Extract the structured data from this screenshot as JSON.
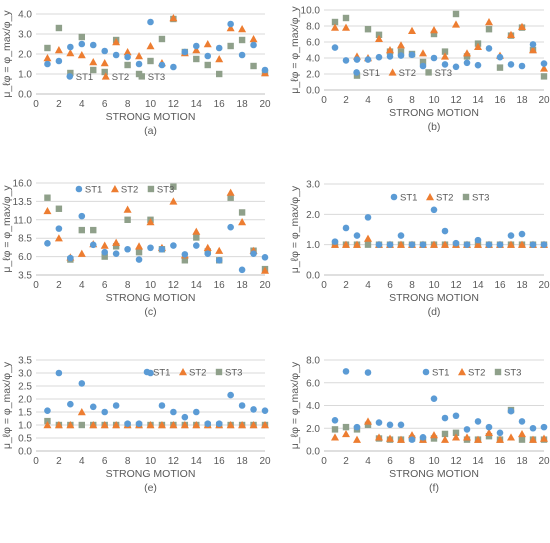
{
  "colors": {
    "ST1": "#5b9bd5",
    "ST2": "#ed7d31",
    "ST3": "#8fa08a"
  },
  "chart_data": [
    {
      "type": "scatter",
      "panel_label": "(a)",
      "xlabel": "STRONG MOTION",
      "ylabel": "μ_ℓφ = φ_max/φ_y",
      "xlim": [
        0,
        20
      ],
      "ylim": [
        0,
        4.0
      ],
      "yticks": [
        "0.0",
        "1.0",
        "2.0",
        "3.0",
        "4.0"
      ],
      "xticks": [
        "0",
        "2",
        "4",
        "6",
        "8",
        "10",
        "12",
        "14",
        "16",
        "18",
        "20"
      ],
      "legend": "bottom-left",
      "grid": "horizontal",
      "x": [
        1,
        2,
        3,
        4,
        5,
        6,
        7,
        8,
        9,
        10,
        11,
        12,
        13,
        14,
        15,
        16,
        17,
        18,
        19,
        20
      ],
      "series": [
        {
          "name": "ST1",
          "marker": "circle",
          "values": [
            1.5,
            1.65,
            2.35,
            2.5,
            2.45,
            2.15,
            1.95,
            1.85,
            1.5,
            3.6,
            1.45,
            1.35,
            2.1,
            2.4,
            1.9,
            2.3,
            3.5,
            1.95,
            2.45,
            1.2
          ]
        },
        {
          "name": "ST2",
          "marker": "triangle",
          "values": [
            1.8,
            2.2,
            2.05,
            1.95,
            1.6,
            1.55,
            2.6,
            2.1,
            1.9,
            2.4,
            1.55,
            3.8,
            2.05,
            2.2,
            2.5,
            1.75,
            3.3,
            3.25,
            2.75,
            1.05
          ]
        },
        {
          "name": "ST3",
          "marker": "square",
          "values": [
            2.3,
            3.3,
            1.05,
            2.85,
            1.2,
            1.1,
            2.7,
            1.45,
            1.0,
            1.65,
            2.75,
            3.75,
            2.1,
            1.75,
            1.45,
            1.0,
            2.4,
            2.7,
            1.4,
            1.05
          ]
        }
      ]
    },
    {
      "type": "scatter",
      "panel_label": "(b)",
      "xlabel": "STRONG MOTION",
      "ylabel": "μ_ℓφ = φ_max/φ_y",
      "xlim": [
        0,
        20
      ],
      "ylim": [
        0,
        10.0
      ],
      "yticks": [
        "0.0",
        "2.0",
        "4.0",
        "6.0",
        "8.0",
        "10.0"
      ],
      "xticks": [
        "0",
        "2",
        "4",
        "6",
        "8",
        "10",
        "12",
        "14",
        "16",
        "18",
        "20"
      ],
      "legend": "bottom-left",
      "grid": "horizontal",
      "x": [
        1,
        2,
        3,
        4,
        5,
        6,
        7,
        8,
        9,
        10,
        11,
        12,
        13,
        14,
        15,
        16,
        17,
        18,
        19,
        20
      ],
      "series": [
        {
          "name": "ST1",
          "marker": "circle",
          "values": [
            5.3,
            3.7,
            3.8,
            3.8,
            4.1,
            4.2,
            4.3,
            4.4,
            3.0,
            4.0,
            3.2,
            2.9,
            3.4,
            3.1,
            5.2,
            4.1,
            3.2,
            3.0,
            5.7,
            3.3
          ]
        },
        {
          "name": "ST2",
          "marker": "triangle",
          "values": [
            7.8,
            7.8,
            4.2,
            4.0,
            6.4,
            5.0,
            5.6,
            7.4,
            4.6,
            7.5,
            4.2,
            8.2,
            4.6,
            5.4,
            8.5,
            4.3,
            6.9,
            7.9,
            5.0,
            2.7
          ]
        },
        {
          "name": "ST3",
          "marker": "square",
          "values": [
            8.5,
            9.0,
            1.8,
            7.6,
            6.9,
            4.8,
            4.8,
            4.5,
            3.5,
            7.0,
            4.8,
            9.5,
            4.2,
            5.8,
            7.6,
            2.8,
            6.8,
            7.8,
            5.0,
            1.7
          ]
        }
      ]
    },
    {
      "type": "scatter",
      "panel_label": "(c)",
      "xlabel": "STRONG MOTION",
      "ylabel": "μ_ℓφ = φ_max/φ_y",
      "xlim": [
        0,
        20
      ],
      "ylim": [
        3.5,
        16.0
      ],
      "yticks": [
        "3.5",
        "6.0",
        "8.5",
        "11.0",
        "13.5",
        "16.0"
      ],
      "xticks": [
        "0",
        "2",
        "4",
        "6",
        "8",
        "10",
        "12",
        "14",
        "16",
        "18",
        "20"
      ],
      "legend": "top-left",
      "grid": "horizontal",
      "x": [
        1,
        2,
        3,
        4,
        5,
        6,
        7,
        8,
        9,
        10,
        11,
        12,
        13,
        14,
        15,
        16,
        17,
        18,
        19,
        20
      ],
      "series": [
        {
          "name": "ST1",
          "marker": "circle",
          "values": [
            7.8,
            9.8,
            5.8,
            11.5,
            7.6,
            6.6,
            6.4,
            7.0,
            5.6,
            7.2,
            7.0,
            7.5,
            6.3,
            7.5,
            6.4,
            5.5,
            10.0,
            4.2,
            6.4,
            5.9
          ]
        },
        {
          "name": "ST2",
          "marker": "triangle",
          "values": [
            12.2,
            8.5,
            5.9,
            6.4,
            7.7,
            7.5,
            7.9,
            12.4,
            7.4,
            10.7,
            7.2,
            13.5,
            6.2,
            9.4,
            7.2,
            6.8,
            14.7,
            10.7,
            6.8,
            4.1
          ]
        },
        {
          "name": "ST3",
          "marker": "square",
          "values": [
            14.0,
            12.5,
            5.6,
            9.6,
            9.6,
            6.0,
            7.4,
            11.0,
            6.6,
            11.0,
            7.0,
            15.5,
            5.5,
            8.6,
            6.7,
            5.5,
            14.0,
            12.0,
            6.8,
            4.3
          ]
        }
      ]
    },
    {
      "type": "scatter",
      "panel_label": "(d)",
      "xlabel": "STRONG MOTION",
      "ylabel": "μ_ℓφ = φ_max/φ_y",
      "xlim": [
        0,
        20
      ],
      "ylim": [
        0,
        3.0
      ],
      "yticks": [
        "0.0",
        "1.0",
        "2.0",
        "3.0"
      ],
      "xticks": [
        "0",
        "2",
        "4",
        "6",
        "8",
        "10",
        "12",
        "14",
        "16",
        "18",
        "20"
      ],
      "legend": "top-center",
      "grid": "horizontal",
      "x": [
        1,
        2,
        3,
        4,
        5,
        6,
        7,
        8,
        9,
        10,
        11,
        12,
        13,
        14,
        15,
        16,
        17,
        18,
        19,
        20
      ],
      "series": [
        {
          "name": "ST1",
          "marker": "circle",
          "values": [
            1.1,
            1.55,
            1.3,
            1.9,
            1.0,
            1.0,
            1.3,
            1.0,
            1.0,
            2.15,
            1.45,
            1.05,
            1.0,
            1.15,
            1.0,
            1.0,
            1.3,
            1.35,
            1.0,
            1.0
          ]
        },
        {
          "name": "ST2",
          "marker": "triangle",
          "values": [
            1.0,
            1.0,
            1.0,
            1.2,
            1.0,
            1.0,
            1.0,
            1.0,
            1.0,
            1.0,
            1.0,
            1.0,
            1.0,
            1.0,
            1.0,
            1.0,
            1.0,
            1.0,
            1.0,
            1.0
          ]
        },
        {
          "name": "ST3",
          "marker": "square",
          "values": [
            1.0,
            1.0,
            1.0,
            1.0,
            1.0,
            1.0,
            1.0,
            1.0,
            1.0,
            1.0,
            1.0,
            1.0,
            1.0,
            1.0,
            1.0,
            1.0,
            1.0,
            1.0,
            1.0,
            1.0
          ]
        }
      ]
    },
    {
      "type": "scatter",
      "panel_label": "(e)",
      "xlabel": "STRONG MOTION",
      "ylabel": "μ_ℓφ = φ_max/φ_y",
      "xlim": [
        0,
        20
      ],
      "ylim": [
        0,
        3.5
      ],
      "yticks": [
        "0.0",
        "0.5",
        "1.0",
        "1.5",
        "2.0",
        "2.5",
        "3.0",
        "3.5"
      ],
      "xticks": [
        "0",
        "2",
        "4",
        "6",
        "8",
        "10",
        "12",
        "14",
        "16",
        "18",
        "20"
      ],
      "legend": "top-right",
      "grid": "horizontal",
      "x": [
        1,
        2,
        3,
        4,
        5,
        6,
        7,
        8,
        9,
        10,
        11,
        12,
        13,
        14,
        15,
        16,
        17,
        18,
        19,
        20
      ],
      "series": [
        {
          "name": "ST1",
          "marker": "circle",
          "values": [
            1.55,
            3.0,
            1.8,
            2.6,
            1.7,
            1.5,
            1.75,
            1.05,
            1.05,
            3.0,
            1.75,
            1.5,
            1.3,
            1.5,
            1.05,
            1.05,
            2.15,
            1.75,
            1.6,
            1.55
          ]
        },
        {
          "name": "ST2",
          "marker": "triangle",
          "values": [
            1.0,
            1.0,
            1.0,
            1.5,
            1.0,
            1.0,
            1.0,
            1.0,
            1.0,
            1.0,
            1.0,
            1.0,
            1.0,
            1.0,
            1.0,
            1.0,
            1.0,
            1.0,
            1.0,
            1.0
          ]
        },
        {
          "name": "ST3",
          "marker": "square",
          "values": [
            1.15,
            1.0,
            1.0,
            1.0,
            1.0,
            1.0,
            1.0,
            1.0,
            1.0,
            1.0,
            1.0,
            1.0,
            1.0,
            1.0,
            1.0,
            1.0,
            1.0,
            1.0,
            1.0,
            1.0
          ]
        }
      ]
    },
    {
      "type": "scatter",
      "panel_label": "(f)",
      "xlabel": "STRONG MOTION",
      "ylabel": "μ_ℓφ = φ_max/φ_y",
      "xlim": [
        0,
        20
      ],
      "ylim": [
        0,
        8.0
      ],
      "yticks": [
        "0.0",
        "2.0",
        "4.0",
        "6.0",
        "8.0"
      ],
      "xticks": [
        "0",
        "2",
        "4",
        "6",
        "8",
        "10",
        "12",
        "14",
        "16",
        "18",
        "20"
      ],
      "legend": "top-right",
      "grid": "horizontal",
      "x": [
        1,
        2,
        3,
        4,
        5,
        6,
        7,
        8,
        9,
        10,
        11,
        12,
        13,
        14,
        15,
        16,
        17,
        18,
        19,
        20
      ],
      "series": [
        {
          "name": "ST1",
          "marker": "circle",
          "values": [
            2.7,
            7.0,
            2.1,
            6.9,
            2.5,
            2.3,
            2.3,
            1.0,
            1.2,
            4.6,
            2.9,
            3.1,
            1.9,
            2.6,
            2.1,
            1.6,
            3.5,
            2.6,
            2.0,
            2.1
          ]
        },
        {
          "name": "ST2",
          "marker": "triangle",
          "values": [
            1.2,
            1.5,
            1.0,
            2.6,
            1.2,
            1.1,
            1.0,
            1.4,
            1.0,
            1.4,
            1.0,
            1.2,
            1.2,
            1.0,
            1.6,
            1.0,
            1.2,
            1.5,
            1.0,
            1.1
          ]
        },
        {
          "name": "ST3",
          "marker": "square",
          "values": [
            1.9,
            2.1,
            1.9,
            2.3,
            1.1,
            1.0,
            1.0,
            1.1,
            1.0,
            1.1,
            1.5,
            1.6,
            1.0,
            1.0,
            1.3,
            1.0,
            3.6,
            1.0,
            1.0,
            1.0
          ]
        }
      ]
    }
  ]
}
